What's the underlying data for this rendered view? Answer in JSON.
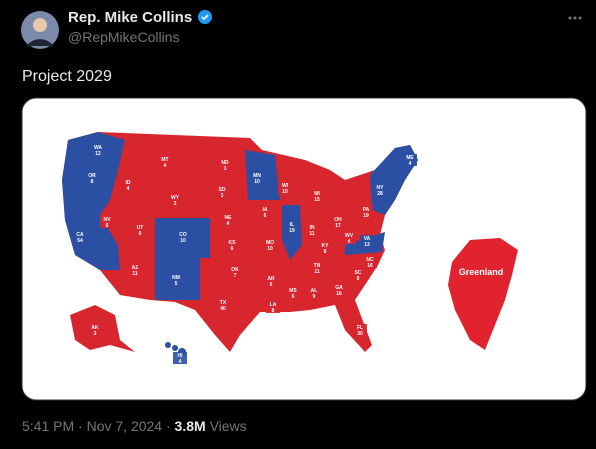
{
  "post": {
    "author_name": "Rep. Mike Collins",
    "handle": "@RepMikeCollins",
    "text": "Project 2029",
    "map": {
      "greenland_label": "Greenland",
      "states": [
        {
          "abbr": "WA",
          "votes": 12,
          "color": "#2a4fa3"
        },
        {
          "abbr": "OR",
          "votes": 8,
          "color": "#2a4fa3"
        },
        {
          "abbr": "CA",
          "votes": 54,
          "color": "#2a4fa3"
        },
        {
          "abbr": "NV",
          "votes": 6,
          "color": "#d8262f"
        },
        {
          "abbr": "ID",
          "votes": 4,
          "color": "#d8262f"
        },
        {
          "abbr": "MT",
          "votes": 4,
          "color": "#d8262f"
        },
        {
          "abbr": "WY",
          "votes": 3,
          "color": "#d8262f"
        },
        {
          "abbr": "UT",
          "votes": 6,
          "color": "#d8262f"
        },
        {
          "abbr": "AZ",
          "votes": 11,
          "color": "#d8262f"
        },
        {
          "abbr": "CO",
          "votes": 10,
          "color": "#2a4fa3"
        },
        {
          "abbr": "NM",
          "votes": 5,
          "color": "#2a4fa3"
        },
        {
          "abbr": "ND",
          "votes": 3,
          "color": "#d8262f"
        },
        {
          "abbr": "SD",
          "votes": 3,
          "color": "#d8262f"
        },
        {
          "abbr": "NE",
          "votes": 4,
          "color": "#d8262f"
        },
        {
          "abbr": "KS",
          "votes": 6,
          "color": "#d8262f"
        },
        {
          "abbr": "OK",
          "votes": 7,
          "color": "#d8262f"
        },
        {
          "abbr": "TX",
          "votes": 40,
          "color": "#d8262f"
        },
        {
          "abbr": "MN",
          "votes": 10,
          "color": "#2a4fa3"
        },
        {
          "abbr": "IA",
          "votes": 6,
          "color": "#d8262f"
        },
        {
          "abbr": "MO",
          "votes": 10,
          "color": "#d8262f"
        },
        {
          "abbr": "AR",
          "votes": 6,
          "color": "#d8262f"
        },
        {
          "abbr": "LA",
          "votes": 8,
          "color": "#d8262f"
        },
        {
          "abbr": "WI",
          "votes": 10,
          "color": "#d8262f"
        },
        {
          "abbr": "IL",
          "votes": 19,
          "color": "#2a4fa3"
        },
        {
          "abbr": "MI",
          "votes": 15,
          "color": "#d8262f"
        },
        {
          "abbr": "IN",
          "votes": 11,
          "color": "#d8262f"
        },
        {
          "abbr": "OH",
          "votes": 17,
          "color": "#d8262f"
        },
        {
          "abbr": "KY",
          "votes": 8,
          "color": "#d8262f"
        },
        {
          "abbr": "TN",
          "votes": 11,
          "color": "#d8262f"
        },
        {
          "abbr": "MS",
          "votes": 6,
          "color": "#d8262f"
        },
        {
          "abbr": "AL",
          "votes": 9,
          "color": "#d8262f"
        },
        {
          "abbr": "GA",
          "votes": 16,
          "color": "#d8262f"
        },
        {
          "abbr": "FL",
          "votes": 30,
          "color": "#d8262f"
        },
        {
          "abbr": "SC",
          "votes": 9,
          "color": "#d8262f"
        },
        {
          "abbr": "NC",
          "votes": 16,
          "color": "#d8262f"
        },
        {
          "abbr": "VA",
          "votes": 13,
          "color": "#2a4fa3"
        },
        {
          "abbr": "WV",
          "votes": 4,
          "color": "#d8262f"
        },
        {
          "abbr": "PA",
          "votes": 19,
          "color": "#d8262f"
        },
        {
          "abbr": "NY",
          "votes": 28,
          "color": "#2a4fa3"
        },
        {
          "abbr": "ME",
          "votes": 4,
          "color": "#2a4fa3"
        },
        {
          "abbr": "AK",
          "votes": 3,
          "color": "#d8262f"
        },
        {
          "abbr": "HI",
          "votes": 4,
          "color": "#2a4fa3"
        }
      ]
    },
    "time": "5:41 PM",
    "date": "Nov 7, 2024",
    "views_count": "3.8M",
    "views_label": "Views"
  }
}
